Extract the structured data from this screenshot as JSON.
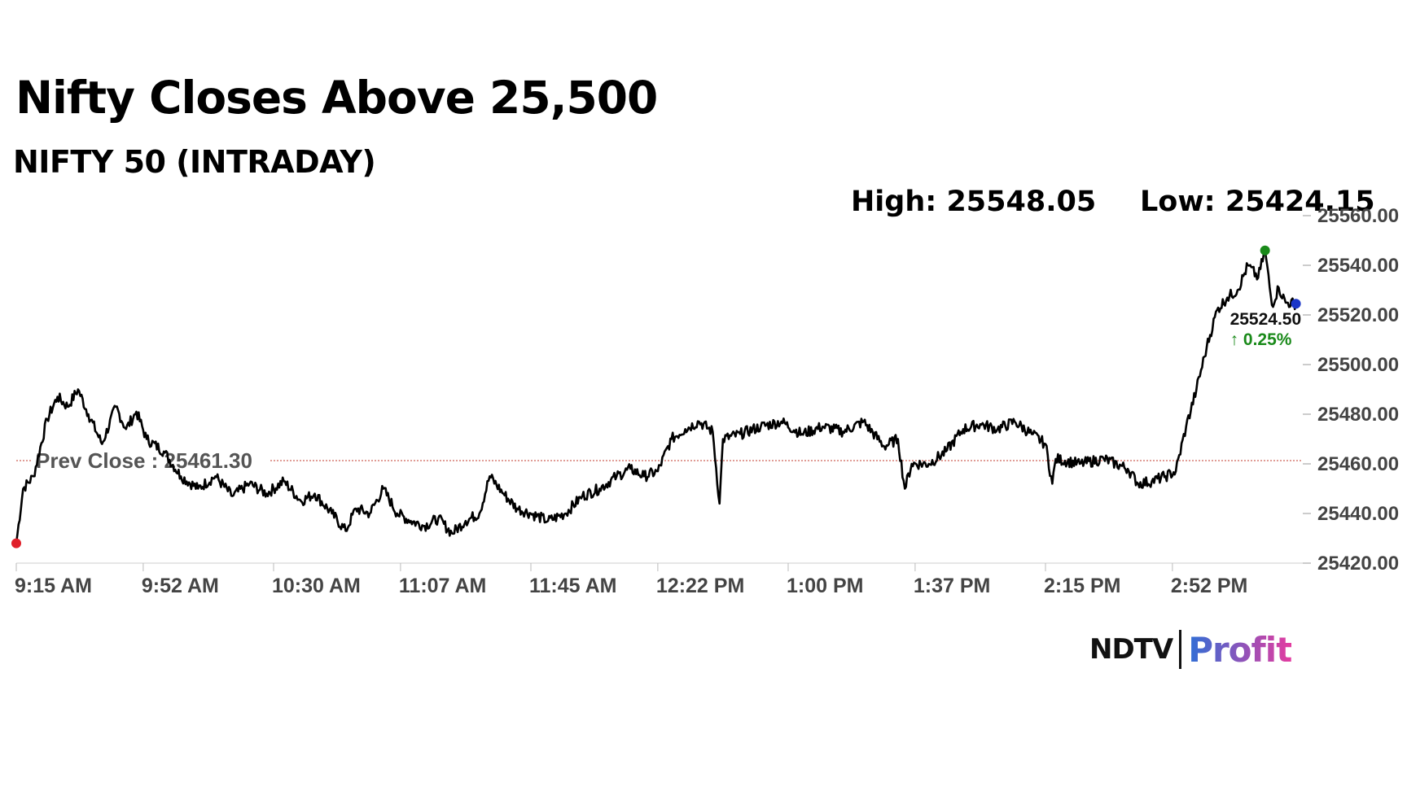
{
  "header": {
    "title": "Nifty Closes Above 25,500",
    "subtitle": "NIFTY 50 (INTRADAY)",
    "high_text": "High: 25548.05",
    "low_text": "Low: 25424.15"
  },
  "brand": {
    "ndtv": "NDTV",
    "profit": "Profit",
    "profit_color_start": "#2f6fd6",
    "profit_color_end": "#e43ca0",
    "ndtv_dot_color": "#e0202a"
  },
  "chart_data": {
    "type": "line",
    "title": "",
    "xlabel": "",
    "ylabel": "",
    "ylim": [
      25420,
      25560
    ],
    "yticks": [
      25420,
      25440,
      25460,
      25480,
      25500,
      25520,
      25540,
      25560
    ],
    "ytick_labels": [
      "25420.00",
      "25440.00",
      "25460.00",
      "25480.00",
      "25500.00",
      "25520.00",
      "25540.00",
      "25560.00"
    ],
    "xticks": [
      "9:15 AM",
      "9:52 AM",
      "10:30 AM",
      "11:07 AM",
      "11:45 AM",
      "12:22 PM",
      "1:00 PM",
      "1:37 PM",
      "2:15 PM",
      "2:52 PM"
    ],
    "x_start": "9:15 AM",
    "x_end": "3:30 PM",
    "series": [
      {
        "color": "#000000",
        "points": [
          [
            "9:15",
            25428
          ],
          [
            "9:17",
            25450
          ],
          [
            "9:20",
            25455
          ],
          [
            "9:24",
            25478
          ],
          [
            "9:27",
            25487
          ],
          [
            "9:30",
            25483
          ],
          [
            "9:33",
            25490
          ],
          [
            "9:36",
            25480
          ],
          [
            "9:40",
            25468
          ],
          [
            "9:44",
            25483
          ],
          [
            "9:47",
            25474
          ],
          [
            "9:50",
            25481
          ],
          [
            "9:53",
            25470
          ],
          [
            "9:58",
            25465
          ],
          [
            "10:03",
            25455
          ],
          [
            "10:08",
            25450
          ],
          [
            "10:13",
            25455
          ],
          [
            "10:18",
            25447
          ],
          [
            "10:23",
            25452
          ],
          [
            "10:28",
            25448
          ],
          [
            "10:33",
            25453
          ],
          [
            "10:38",
            25445
          ],
          [
            "10:42",
            25448
          ],
          [
            "10:47",
            25440
          ],
          [
            "10:51",
            25433
          ],
          [
            "10:54",
            25442
          ],
          [
            "10:58",
            25440
          ],
          [
            "11:02",
            25450
          ],
          [
            "11:06",
            25440
          ],
          [
            "11:10",
            25437
          ],
          [
            "11:14",
            25435
          ],
          [
            "11:18",
            25438
          ],
          [
            "11:22",
            25432
          ],
          [
            "11:26",
            25437
          ],
          [
            "11:30",
            25440
          ],
          [
            "11:33",
            25455
          ],
          [
            "11:37",
            25448
          ],
          [
            "11:41",
            25442
          ],
          [
            "11:45",
            25440
          ],
          [
            "11:50",
            25437
          ],
          [
            "11:55",
            25440
          ],
          [
            "12:00",
            25447
          ],
          [
            "12:05",
            25450
          ],
          [
            "12:10",
            25455
          ],
          [
            "12:14",
            25458
          ],
          [
            "12:18",
            25455
          ],
          [
            "12:22",
            25457
          ],
          [
            "12:26",
            25470
          ],
          [
            "12:30",
            25474
          ],
          [
            "12:34",
            25477
          ],
          [
            "12:38",
            25473
          ],
          [
            "12:40",
            25444
          ],
          [
            "12:41",
            25470
          ],
          [
            "12:46",
            25472
          ],
          [
            "12:52",
            25475
          ],
          [
            "12:58",
            25477
          ],
          [
            "13:04",
            25472
          ],
          [
            "13:10",
            25475
          ],
          [
            "13:16",
            25473
          ],
          [
            "13:22",
            25477
          ],
          [
            "13:28",
            25467
          ],
          [
            "13:32",
            25470
          ],
          [
            "13:34",
            25450
          ],
          [
            "13:36",
            25460
          ],
          [
            "13:41",
            25460
          ],
          [
            "13:46",
            25465
          ],
          [
            "13:51",
            25474
          ],
          [
            "13:56",
            25476
          ],
          [
            "14:01",
            25474
          ],
          [
            "14:06",
            25477
          ],
          [
            "14:11",
            25472
          ],
          [
            "14:15",
            25468
          ],
          [
            "14:17",
            25452
          ],
          [
            "14:18",
            25462
          ],
          [
            "14:25",
            25460
          ],
          [
            "14:32",
            25462
          ],
          [
            "14:39",
            25458
          ],
          [
            "14:42",
            25452
          ],
          [
            "14:46",
            25453
          ],
          [
            "14:50",
            25455
          ],
          [
            "14:53",
            25457
          ],
          [
            "14:56",
            25475
          ],
          [
            "14:59",
            25490
          ],
          [
            "15:02",
            25507
          ],
          [
            "15:05",
            25522
          ],
          [
            "15:08",
            25527
          ],
          [
            "15:11",
            25530
          ],
          [
            "15:14",
            25540
          ],
          [
            "15:17",
            25535
          ],
          [
            "15:19",
            25546
          ],
          [
            "15:21",
            25524
          ],
          [
            "15:23",
            25531
          ],
          [
            "15:25",
            25525
          ],
          [
            "15:28",
            25524.5
          ]
        ]
      }
    ],
    "reference_line": {
      "label": "Prev Close : 25461.30",
      "value": 25461.3,
      "color": "#c0392b"
    },
    "high_marker": {
      "time": "15:19",
      "value": 25546,
      "color": "#1a8a1a"
    },
    "low_marker": {
      "time": "9:15",
      "value": 25428,
      "color": "#e0202a"
    },
    "last_marker": {
      "time": "15:28",
      "value": 25524.5,
      "color": "#1a35c7"
    },
    "last_price_label": "25524.50",
    "change_label": "↑ 0.25%",
    "change_color": "#1a8a1a",
    "grid": false,
    "legend": "none"
  }
}
